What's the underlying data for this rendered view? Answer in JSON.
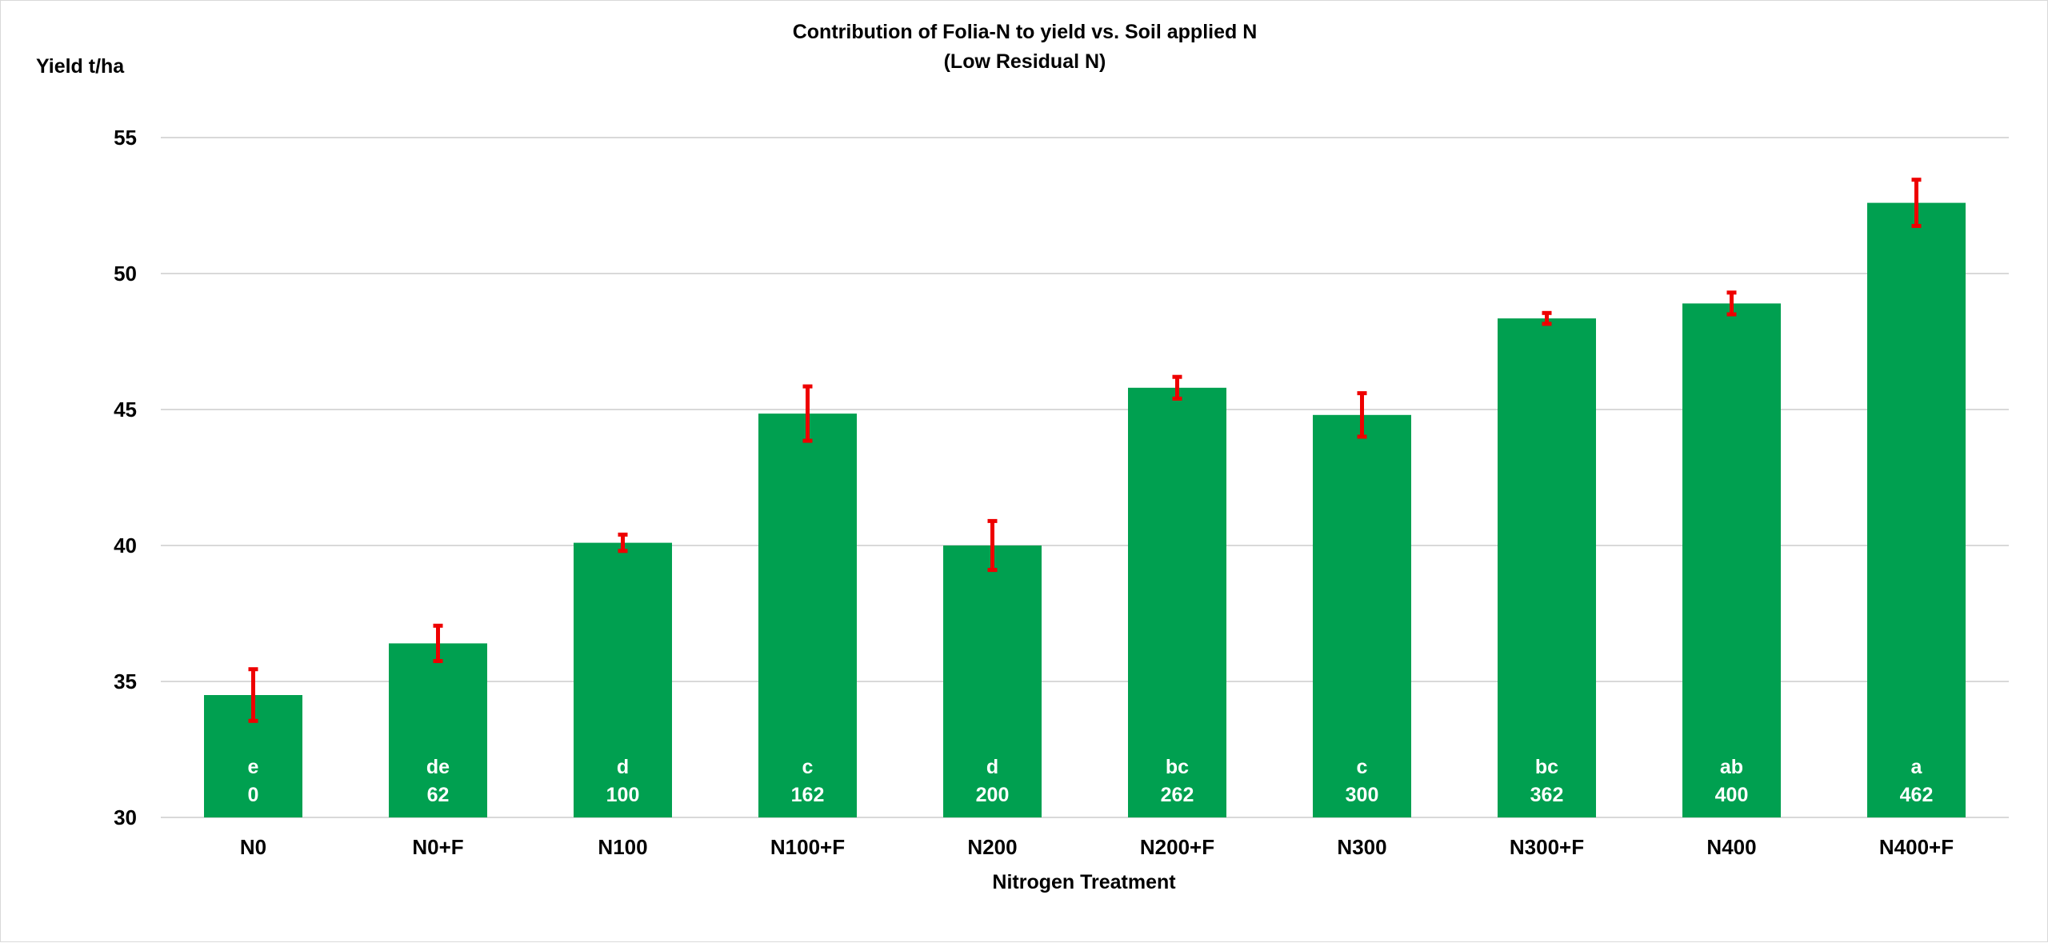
{
  "chart_data": {
    "type": "bar",
    "title": "Contribution of Folia-N to yield vs. Soil applied N",
    "subtitle": "(Low Residual N)",
    "ylabel": "Yield t/ha",
    "xlabel": "Nitrogen Treatment",
    "ylim": [
      30,
      55
    ],
    "yticks": [
      30,
      35,
      40,
      45,
      50,
      55
    ],
    "grid": true,
    "categories": [
      "N0",
      "N0+F",
      "N100",
      "N100+F",
      "N200",
      "N200+F",
      "N300",
      "N300+F",
      "N400",
      "N400+F"
    ],
    "values": [
      34.5,
      36.4,
      40.1,
      44.85,
      40.0,
      45.8,
      44.8,
      48.35,
      48.9,
      52.6
    ],
    "error": [
      0.95,
      0.65,
      0.3,
      1.0,
      0.9,
      0.4,
      0.8,
      0.2,
      0.4,
      0.85
    ],
    "significance_letters": [
      "e",
      "de",
      "d",
      "c",
      "d",
      "bc",
      "c",
      "bc",
      "ab",
      "a"
    ],
    "total_n": [
      "0",
      "62",
      "100",
      "162",
      "200",
      "262",
      "300",
      "362",
      "400",
      "462"
    ],
    "bar_color": "#00A050",
    "error_color": "#EE0000",
    "grid_color": "#D9D9D9"
  }
}
